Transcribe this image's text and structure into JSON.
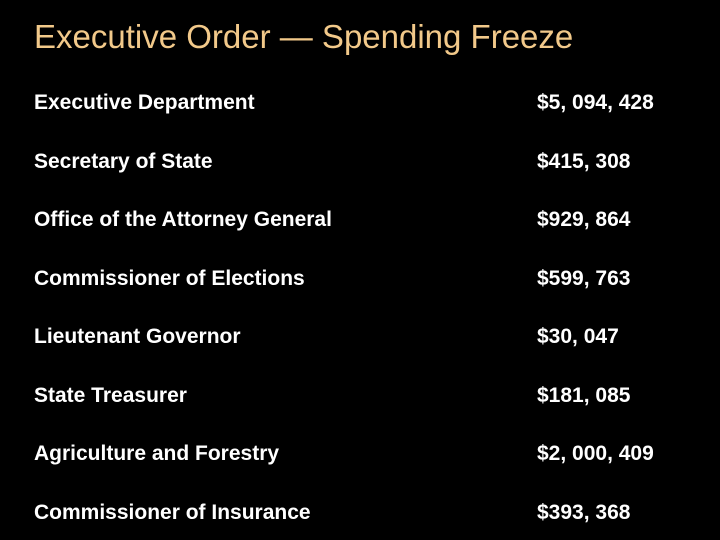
{
  "slide": {
    "title": "Executive Order — Spending Freeze",
    "title_color": "#f2c98a",
    "background_color": "#000000",
    "text_color": "#ffffff"
  },
  "rows": [
    {
      "label": "Executive Department",
      "amount": "$5, 094, 428"
    },
    {
      "label": "Secretary of State",
      "amount": "$415, 308"
    },
    {
      "label": "Office of the Attorney General",
      "amount": "$929, 864"
    },
    {
      "label": "Commissioner of Elections",
      "amount": "$599, 763"
    },
    {
      "label": "Lieutenant Governor",
      "amount": "$30, 047"
    },
    {
      "label": "State Treasurer",
      "amount": "$181, 085"
    },
    {
      "label": "Agriculture and Forestry",
      "amount": "$2, 000, 409"
    },
    {
      "label": "Commissioner of Insurance",
      "amount": "$393, 368"
    }
  ]
}
